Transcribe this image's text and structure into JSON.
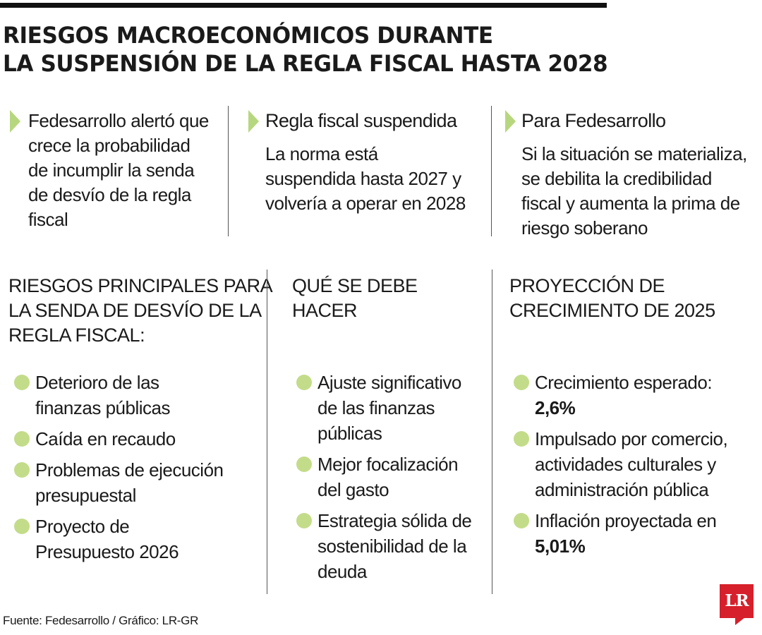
{
  "title": {
    "line1": "RIESGOS MACROECONÓMICOS DURANTE",
    "line2": "LA SUSPENSIÓN DE LA REGLA FISCAL HASTA 2028"
  },
  "top_columns": {
    "col1": {
      "text": "Fedesarrollo alertó que crece la probabilidad de incumplir la senda de desvío de la regla fiscal"
    },
    "col2": {
      "heading": "Regla fiscal suspendida",
      "body": "La norma está suspendida hasta 2027 y volvería a operar en 2028"
    },
    "col3": {
      "heading": "Para Fedesarrollo",
      "body": "Si la situación se materializa, se debilita la credibilidad fiscal y aumenta la prima de riesgo soberano"
    }
  },
  "sections": {
    "risks": {
      "heading": [
        "RIESGOS PRINCIPALES PARA",
        "LA SENDA DE DESVÍO DE LA",
        "REGLA FISCAL:"
      ],
      "items": [
        "Deterioro de las finanzas públicas",
        "Caída en recaudo",
        "Problemas de ejecución presupuestal",
        "Proyecto de Presupuesto 2026"
      ]
    },
    "actions": {
      "heading": [
        "QUÉ SE DEBE",
        "HACER"
      ],
      "items": [
        "Ajuste significativo de las finanzas públicas",
        "Mejor focalización del gasto",
        "Estrategia sólida de sostenibilidad de la deuda"
      ]
    },
    "projection": {
      "heading": [
        "PROYECCIÓN DE",
        "CRECIMIENTO DE 2025"
      ],
      "items": [
        {
          "text": "Crecimiento esperado:",
          "value": "2,6%"
        },
        {
          "text": "Impulsado por comercio, actividades culturales y administración pública"
        },
        {
          "text": "Inflación proyectada en",
          "value": "5,01%"
        }
      ]
    }
  },
  "footer": "Fuente: Fedesarrollo / Gráfico: LR-GR",
  "logo_text": "LR",
  "colors": {
    "accent_green": "#b7d77e",
    "bullet_green": "#c3dc8a",
    "logo_red": "#d6202b",
    "top_bar": "#111111"
  },
  "icons": {
    "arrow": "triangle-right-icon",
    "bullet": "circle-bullet-icon"
  }
}
